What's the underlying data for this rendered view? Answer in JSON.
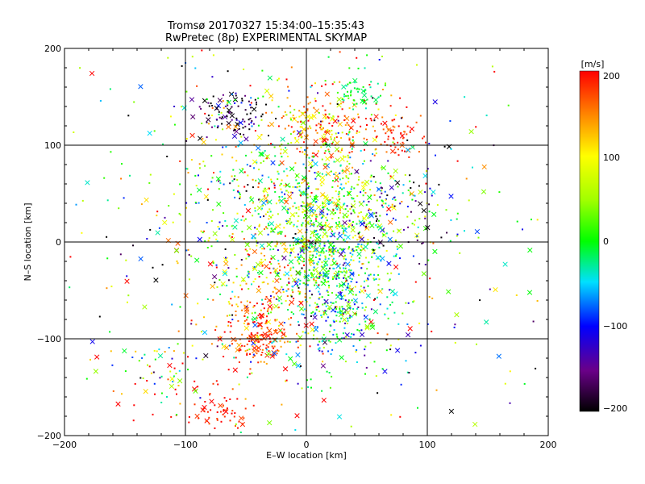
{
  "chart_data": {
    "type": "scatter",
    "title": "Tromsø 20170327 15:34:00–15:35:43",
    "subtitle": "RwPretec (8p) EXPERIMENTAL SKYMAP",
    "xlabel": "E–W location [km]",
    "ylabel": "N–S location [km]",
    "xlim": [
      -200,
      200
    ],
    "ylim": [
      -200,
      200
    ],
    "xticks": [
      -200,
      -100,
      0,
      100,
      200
    ],
    "yticks": [
      -200,
      -100,
      0,
      100,
      200
    ],
    "xtick_labels": [
      "−200",
      "−100",
      "0",
      "100",
      "200"
    ],
    "ytick_labels": [
      "−200",
      "−100",
      "0",
      "100",
      "200"
    ],
    "gridlines": [
      -100,
      0,
      100
    ],
    "colorbar": {
      "label": "[m/s]",
      "min": -200,
      "max": 200,
      "ticks": [
        200,
        100,
        0,
        -100,
        -200
      ],
      "tick_labels": [
        "200",
        "100",
        "0",
        "−100",
        "−200"
      ]
    },
    "series": [
      {
        "name": "small markers",
        "marker": "dot"
      },
      {
        "name": "large markers",
        "marker": "x"
      }
    ],
    "point_summary": "dense scatter of radar velocity points; highest density near x 0–50 km, y −50 to 60 km; red clusters near (−40,−100), (10,120), (70,110), (−70,−180); black cluster near (−60,130)"
  }
}
